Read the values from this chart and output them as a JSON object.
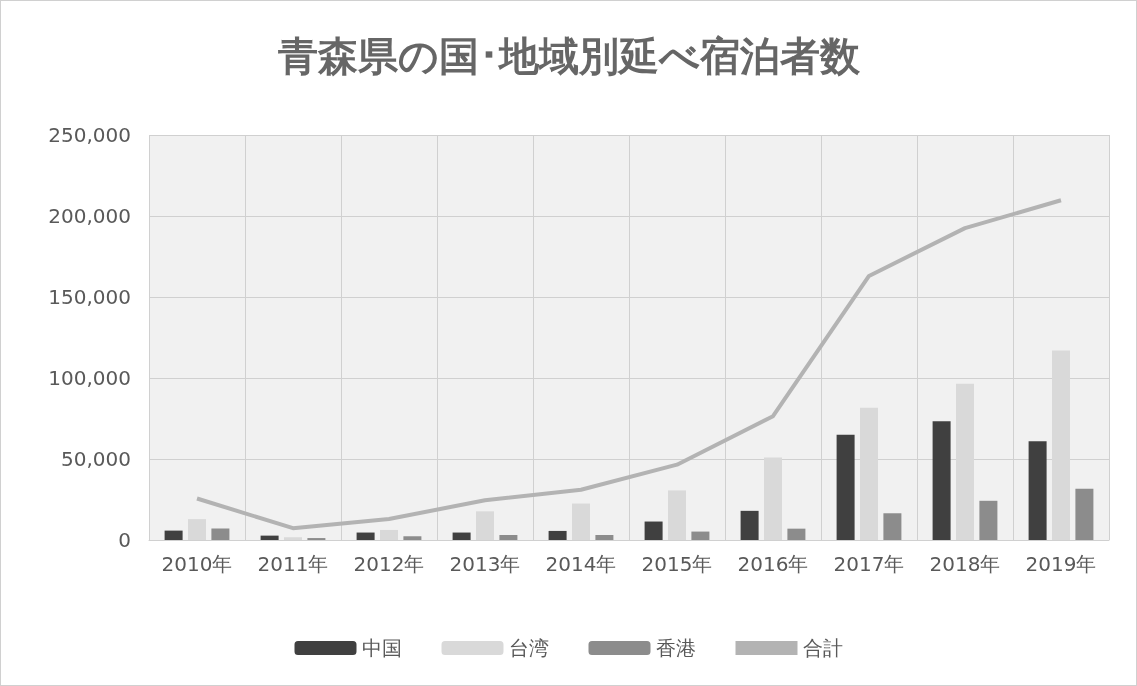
{
  "chart_data": {
    "type": "bar",
    "title": "青森県の国･地域別延べ宿泊者数",
    "categories": [
      "2010年",
      "2011年",
      "2012年",
      "2013年",
      "2014年",
      "2015年",
      "2016年",
      "2017年",
      "2018年",
      "2019年"
    ],
    "series": [
      {
        "name": "中国",
        "color": "#404040",
        "values": [
          5800,
          2700,
          4600,
          4600,
          5600,
          11400,
          18000,
          65000,
          73300,
          61000
        ]
      },
      {
        "name": "台湾",
        "color": "#d9d9d9",
        "values": [
          12900,
          1700,
          6200,
          17700,
          22500,
          30600,
          51000,
          81600,
          96500,
          117000
        ]
      },
      {
        "name": "香港",
        "color": "#8c8c8c",
        "values": [
          7100,
          1200,
          2300,
          3100,
          3100,
          5200,
          7000,
          16500,
          24200,
          31600
        ]
      },
      {
        "name": "合計",
        "type": "line",
        "color": "#b3b3b3",
        "values": [
          25600,
          7300,
          13000,
          24500,
          31000,
          46500,
          76400,
          163000,
          192500,
          209700
        ]
      }
    ],
    "ylim": [
      0,
      250000
    ],
    "yticks": [
      0,
      {
        "value": 50000,
        "label": "50,000"
      },
      {
        "value": 100000,
        "label": "100,000"
      },
      {
        "value": 150000,
        "label": "150,000"
      },
      {
        "value": 200000,
        "label": "200,000"
      },
      {
        "value": 250000,
        "label": "250,000"
      }
    ],
    "grid": true,
    "legend": "bottom",
    "marker": "none"
  }
}
